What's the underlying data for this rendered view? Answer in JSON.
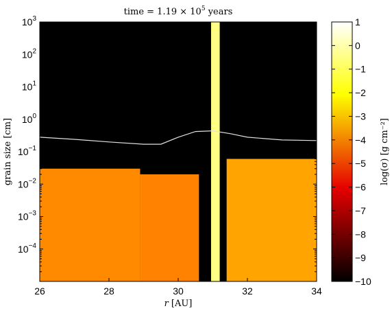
{
  "chart_data": {
    "type": "heatmap",
    "title": "time = 1.19 × 10⁵ years",
    "title_parts": {
      "prefix": "time = 1.19 × 10",
      "exp": "5",
      "suffix": " years"
    },
    "xlabel": "r [AU]",
    "xlabel_parts": {
      "var": "r",
      "unit": " [AU]"
    },
    "ylabel": "grain size [cm]",
    "colorbar_label": "log(σ) [g cm⁻²]",
    "xlim": [
      26,
      34
    ],
    "ylim": [
      1e-05,
      1000
    ],
    "yscale": "log",
    "xticks": [
      26,
      28,
      30,
      32,
      34
    ],
    "yticks": [
      {
        "value": 1000,
        "base": "10",
        "exp": "3"
      },
      {
        "value": 100,
        "base": "10",
        "exp": "2"
      },
      {
        "value": 10,
        "base": "10",
        "exp": "1"
      },
      {
        "value": 1,
        "base": "10",
        "exp": "0"
      },
      {
        "value": 0.1,
        "base": "10",
        "exp": "−1"
      },
      {
        "value": 0.01,
        "base": "10",
        "exp": "−2"
      },
      {
        "value": 0.001,
        "base": "10",
        "exp": "−3"
      },
      {
        "value": 0.0001,
        "base": "10",
        "exp": "−4"
      }
    ],
    "colorbar": {
      "range": [
        -10,
        1
      ],
      "ticks": [
        1,
        0,
        -1,
        -2,
        -3,
        -4,
        -5,
        -6,
        -7,
        -8,
        -9,
        -10
      ],
      "colormap": "hot"
    },
    "regions": [
      {
        "name": "inner-dust",
        "x": [
          26.0,
          28.9
        ],
        "max_size_cm": 0.03,
        "log_sigma": -3.9
      },
      {
        "name": "gap-shoulder",
        "x": [
          28.9,
          30.6
        ],
        "max_size_cm": 0.02,
        "log_sigma": -4.0
      },
      {
        "name": "pressure-bump-ring",
        "x": [
          30.95,
          31.2
        ],
        "max_size_cm": 1000,
        "log_sigma": -0.5
      },
      {
        "name": "outer-dust",
        "x": [
          31.4,
          34.0
        ],
        "max_size_cm": 0.06,
        "log_sigma": -3.5
      }
    ],
    "fragmentation_line": {
      "x": [
        26,
        27,
        28,
        29,
        29.5,
        30,
        30.5,
        31,
        31.5,
        32,
        33,
        34
      ],
      "y": [
        0.28,
        0.24,
        0.2,
        0.17,
        0.17,
        0.28,
        0.42,
        0.44,
        0.36,
        0.28,
        0.23,
        0.22
      ]
    },
    "grid": false,
    "legend": "none"
  }
}
